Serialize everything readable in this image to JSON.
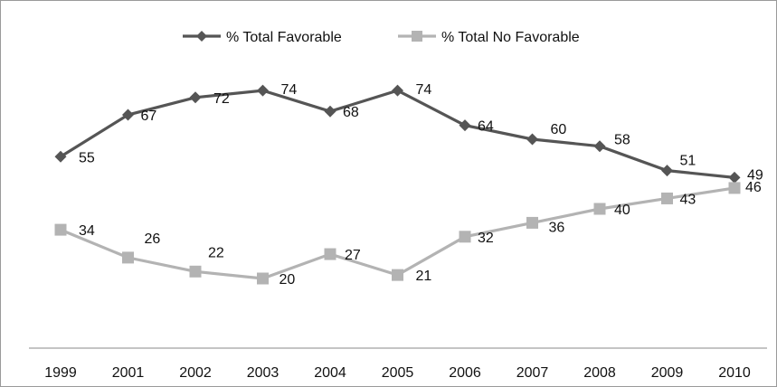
{
  "chart_data": {
    "type": "line",
    "title": "",
    "xlabel": "",
    "ylabel": "",
    "categories": [
      "1999",
      "2001",
      "2002",
      "2003",
      "2004",
      "2005",
      "2006",
      "2007",
      "2008",
      "2009",
      "2010"
    ],
    "ylim": [
      0,
      100
    ],
    "grid": false,
    "legend": "top-center",
    "series": [
      {
        "name": "% Total Favorable",
        "values": [
          55,
          67,
          72,
          74,
          68,
          74,
          64,
          60,
          58,
          51,
          49
        ],
        "color": "#555555",
        "marker": "diamond"
      },
      {
        "name": "% Total No Favorable",
        "values": [
          34,
          26,
          22,
          20,
          27,
          21,
          32,
          36,
          40,
          43,
          46
        ],
        "color": "#b3b3b3",
        "marker": "square"
      }
    ]
  }
}
